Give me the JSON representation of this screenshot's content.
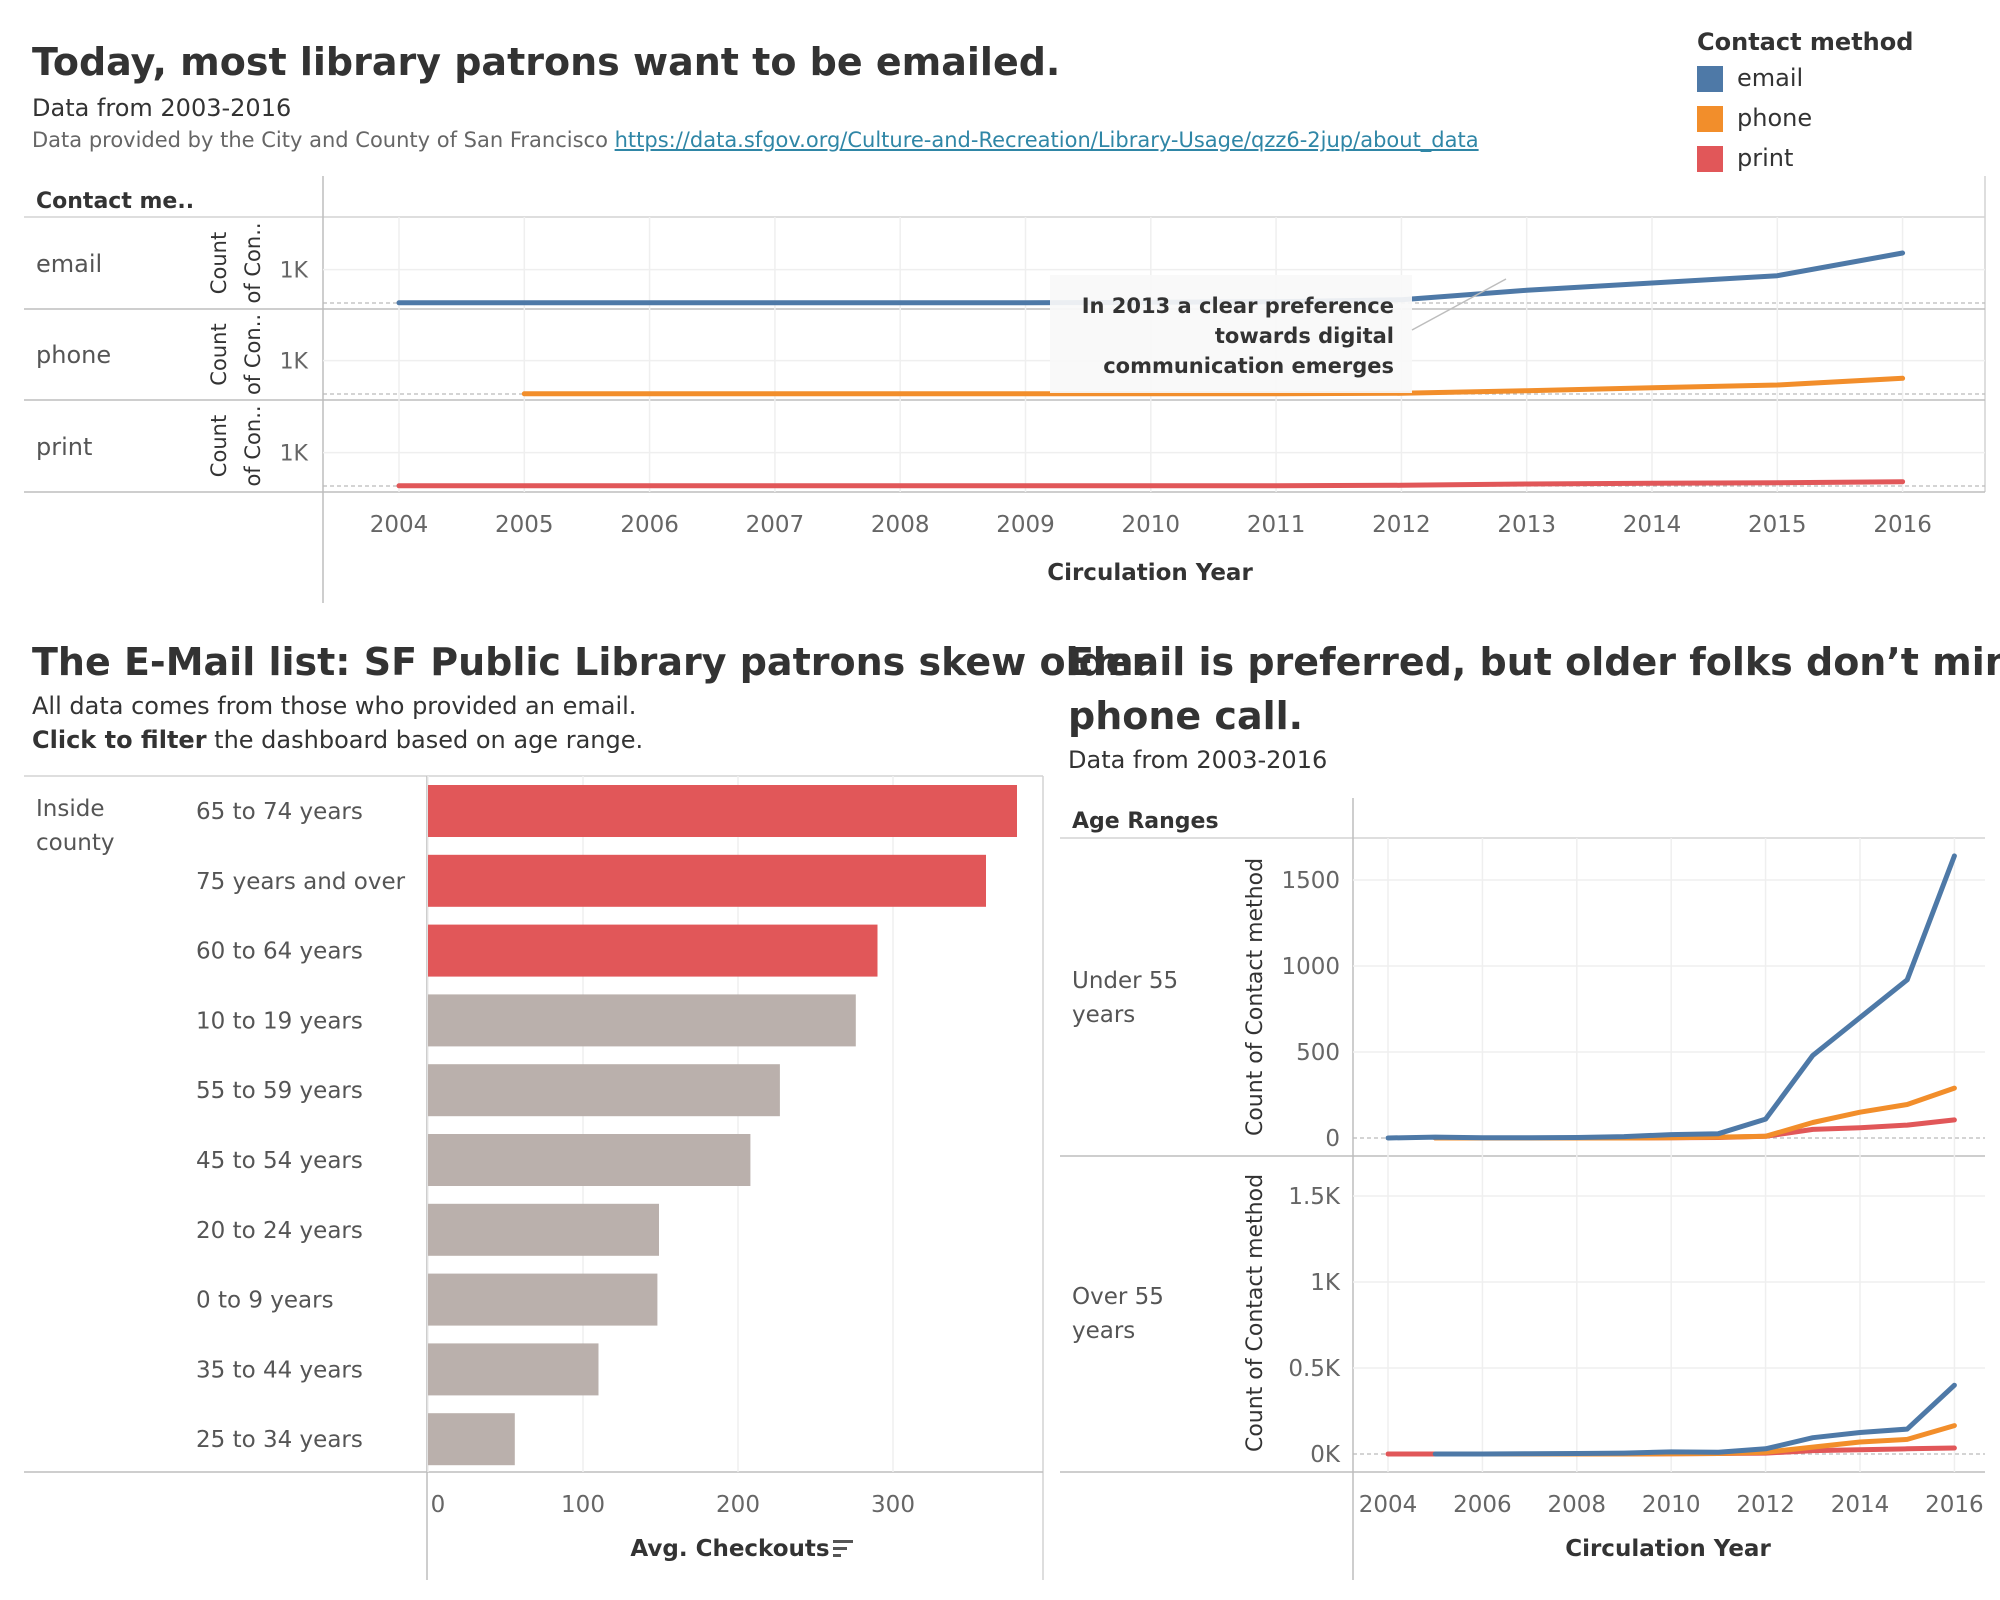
{
  "top": {
    "title": "Today, most library patrons want to be emailed.",
    "subtitle": "Data from 2003-2016",
    "source_text": "Data provided by the City and County of San Francisco ",
    "source_link": "https://data.sfgov.org/Culture-and-Recreation/Library-Usage/qzz6-2jup/about_data"
  },
  "legend": {
    "title": "Contact method",
    "items": [
      {
        "label": "email",
        "color": "#4e79a7"
      },
      {
        "label": "phone",
        "color": "#f28e2b"
      },
      {
        "label": "print",
        "color": "#e15759"
      }
    ]
  },
  "bottom_left": {
    "title": "The E-Mail list: SF Public Library patrons skew older",
    "line1": "All data comes from those who provided an email.",
    "line2_bold": "Click to filter",
    "line2_rest": " the dashboard based on age range."
  },
  "bottom_right": {
    "title_line1": "Email is preferred, but older folks don’t mind a",
    "title_line2": "phone call.",
    "subtitle": "Data from 2003-2016"
  },
  "chart_data": [
    {
      "type": "line",
      "header_label": "Contact me..",
      "row_axis_label": "Count of Con..",
      "xlabel": "Circulation Year",
      "x": [
        2004,
        2005,
        2006,
        2007,
        2008,
        2009,
        2010,
        2011,
        2012,
        2013,
        2014,
        2015,
        2016
      ],
      "yticks": [
        "1K"
      ],
      "annotation": "In 2013 a clear preference towards digital communication emerges",
      "series": [
        {
          "name": "email",
          "color": "#4e79a7",
          "values": [
            5,
            5,
            5,
            5,
            5,
            10,
            20,
            40,
            100,
            380,
            600,
            820,
            1500
          ]
        },
        {
          "name": "phone",
          "color": "#f28e2b",
          "values": [
            null,
            5,
            5,
            5,
            5,
            5,
            5,
            10,
            20,
            100,
            190,
            270,
            470
          ]
        },
        {
          "name": "print",
          "color": "#e15759",
          "values": [
            5,
            5,
            5,
            5,
            5,
            5,
            5,
            10,
            20,
            60,
            80,
            100,
            130
          ]
        }
      ]
    },
    {
      "type": "bar",
      "row_group": "Inside county",
      "xlabel": "Avg. Checkouts",
      "xticks": [
        0,
        100,
        200,
        300
      ],
      "xlim": [
        0,
        400
      ],
      "categories": [
        "65 to 74 years",
        "75 years and over",
        "60 to 64 years",
        "10 to 19 years",
        "55 to 59 years",
        "45 to 54 years",
        "20 to 24 years",
        "0 to 9 years",
        "35 to 44 years",
        "25 to 34 years"
      ],
      "values": [
        380,
        360,
        290,
        276,
        227,
        208,
        149,
        148,
        110,
        56
      ],
      "highlight_colors": [
        "#e15759",
        "#e15759",
        "#e15759",
        "#bab0ac",
        "#bab0ac",
        "#bab0ac",
        "#bab0ac",
        "#bab0ac",
        "#bab0ac",
        "#bab0ac"
      ]
    },
    {
      "type": "line",
      "header_label": "Age Ranges",
      "ylabel": "Count of Contact method",
      "xlabel": "Circulation Year",
      "x": [
        2004,
        2005,
        2006,
        2007,
        2008,
        2009,
        2010,
        2011,
        2012,
        2013,
        2014,
        2015,
        2016
      ],
      "xticks": [
        "2004",
        "2006",
        "2008",
        "2010",
        "2012",
        "2014",
        "2016"
      ],
      "panels": [
        {
          "label": "Under 55 years",
          "yticks": [
            "0",
            "500",
            "1000",
            "1500"
          ],
          "ylim": [
            0,
            1700
          ],
          "series": [
            {
              "name": "email",
              "color": "#4e79a7",
              "values": [
                0,
                5,
                2,
                2,
                3,
                8,
                20,
                25,
                110,
                480,
                700,
                920,
                1640
              ]
            },
            {
              "name": "phone",
              "color": "#f28e2b",
              "values": [
                null,
                0,
                0,
                0,
                0,
                0,
                2,
                5,
                10,
                90,
                150,
                195,
                290
              ]
            },
            {
              "name": "print",
              "color": "#e15759",
              "values": [
                null,
                0,
                0,
                0,
                0,
                0,
                2,
                3,
                10,
                50,
                60,
                75,
                105
              ]
            }
          ]
        },
        {
          "label": "Over 55 years",
          "yticks": [
            "0K",
            "0.5K",
            "1K",
            "1.5K"
          ],
          "ylim": [
            0,
            1700
          ],
          "series": [
            {
              "name": "email",
              "color": "#4e79a7",
              "values": [
                null,
                0,
                0,
                2,
                3,
                5,
                12,
                10,
                30,
                95,
                125,
                145,
                400
              ]
            },
            {
              "name": "phone",
              "color": "#f28e2b",
              "values": [
                null,
                0,
                0,
                0,
                0,
                0,
                2,
                3,
                10,
                40,
                70,
                85,
                165
              ]
            },
            {
              "name": "print",
              "color": "#e15759",
              "values": [
                0,
                0,
                0,
                0,
                0,
                0,
                2,
                3,
                5,
                20,
                25,
                30,
                35
              ]
            }
          ]
        }
      ]
    }
  ]
}
